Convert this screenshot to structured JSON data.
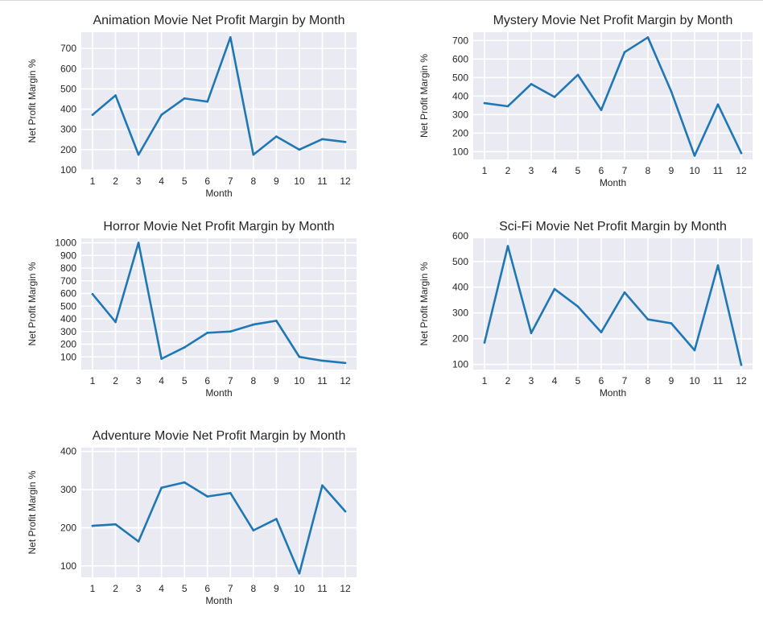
{
  "style": {
    "plot_bg": "#eaeaf2",
    "grid": "#ffffff",
    "line": "#1f77b4",
    "text": "#262626"
  },
  "chart_data": [
    {
      "type": "line",
      "title": "Animation Movie Net Profit Margin by Month",
      "xlabel": "Month",
      "ylabel": "Net Profit Margin %",
      "x": [
        1,
        2,
        3,
        4,
        5,
        6,
        7,
        8,
        9,
        10,
        11,
        12
      ],
      "yticks": [
        100,
        200,
        300,
        400,
        500,
        600,
        700
      ],
      "ylim": [
        100,
        780
      ],
      "grid": true,
      "series": [
        {
          "values": [
            372,
            468,
            175,
            372,
            453,
            437,
            755,
            175,
            265,
            200,
            252,
            238
          ]
        }
      ]
    },
    {
      "type": "line",
      "title": "Mystery Movie Net Profit Margin by Month",
      "xlabel": "Month",
      "ylabel": "Net Profit Margin %",
      "x": [
        1,
        2,
        3,
        4,
        5,
        6,
        7,
        8,
        9,
        10,
        11,
        12
      ],
      "yticks": [
        100,
        200,
        300,
        400,
        500,
        600,
        700
      ],
      "ylim": [
        58,
        745
      ],
      "grid": true,
      "series": [
        {
          "values": [
            362,
            345,
            465,
            395,
            515,
            325,
            637,
            717,
            425,
            78,
            355,
            92
          ]
        }
      ]
    },
    {
      "type": "line",
      "title": "Horror Movie Net Profit Margin by Month",
      "xlabel": "Month",
      "ylabel": "Net Profit Margin %",
      "x": [
        1,
        2,
        3,
        4,
        5,
        6,
        7,
        8,
        9,
        10,
        11,
        12
      ],
      "yticks": [
        100,
        200,
        300,
        400,
        500,
        600,
        700,
        800,
        900,
        1000
      ],
      "ylim": [
        0,
        1035
      ],
      "grid": true,
      "series": [
        {
          "values": [
            595,
            375,
            1000,
            85,
            175,
            290,
            300,
            355,
            385,
            100,
            70,
            52
          ]
        }
      ]
    },
    {
      "type": "line",
      "title": "Sci-Fi Movie Net Profit Margin by Month",
      "xlabel": "Month",
      "ylabel": "Net Profit Margin %",
      "x": [
        1,
        2,
        3,
        4,
        5,
        6,
        7,
        8,
        9,
        10,
        11,
        12
      ],
      "yticks": [
        100,
        200,
        300,
        400,
        500,
        600
      ],
      "ylim": [
        80,
        590
      ],
      "grid": true,
      "series": [
        {
          "values": [
            185,
            560,
            222,
            393,
            325,
            225,
            380,
            275,
            260,
            155,
            485,
            98
          ]
        }
      ]
    },
    {
      "type": "line",
      "title": "Adventure Movie Net Profit Margin by Month",
      "xlabel": "Month",
      "ylabel": "Net Profit Margin %",
      "x": [
        1,
        2,
        3,
        4,
        5,
        6,
        7,
        8,
        9,
        10,
        11,
        12
      ],
      "yticks": [
        100,
        200,
        300,
        400
      ],
      "ylim": [
        70,
        410
      ],
      "grid": true,
      "series": [
        {
          "values": [
            205,
            209,
            164,
            305,
            319,
            282,
            291,
            193,
            223,
            80,
            311,
            243
          ]
        }
      ]
    }
  ]
}
